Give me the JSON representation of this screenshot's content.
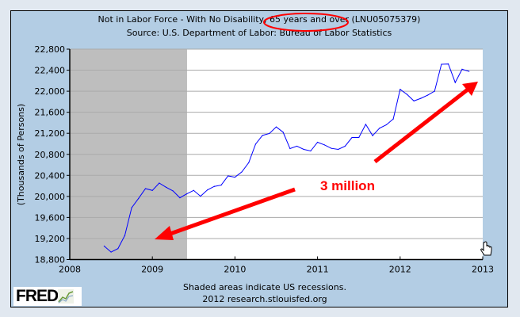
{
  "chart_data": {
    "type": "line",
    "title": "Not in Labor Force - With No Disability, 65 years and over (LNU05075379)",
    "title_parts": [
      "Not in Labor Force - With No Disability, ",
      "65 years and over",
      " (LNU05075379)"
    ],
    "subtitle": "Source: U.S. Department of Labor: Bureau of Labor Statistics",
    "xlabel": "",
    "ylabel": "(Thousands of Persons)",
    "xlim": [
      2008,
      2013
    ],
    "ylim": [
      18800,
      22800
    ],
    "x_ticks": [
      "2008",
      "2009",
      "2010",
      "2011",
      "2012",
      "2013"
    ],
    "y_ticks": [
      "18,800",
      "19,200",
      "19,600",
      "20,000",
      "20,400",
      "20,800",
      "21,200",
      "21,600",
      "22,000",
      "22,400",
      "22,800"
    ],
    "grid": true,
    "recessions": [
      [
        2008.0,
        2009.42
      ]
    ],
    "series": [
      {
        "name": "LNU05075379",
        "color": "#0000ff",
        "start": "2008-06",
        "frequency": "monthly",
        "values": [
          19057,
          18942,
          19008,
          19258,
          19786,
          19963,
          20149,
          20114,
          20254,
          20174,
          20104,
          19974,
          20049,
          20114,
          20004,
          20124,
          20190,
          20215,
          20390,
          20366,
          20466,
          20642,
          20994,
          21160,
          21196,
          21321,
          21220,
          20909,
          20955,
          20894,
          20864,
          21030,
          20980,
          20914,
          20894,
          20955,
          21120,
          21120,
          21371,
          21155,
          21296,
          21362,
          21472,
          22035,
          21940,
          21815,
          21864,
          21925,
          22000,
          22513,
          22518,
          22166,
          22418,
          22377
        ]
      }
    ],
    "annotations": [
      {
        "text": "3 million",
        "color": "#ff0000"
      }
    ]
  },
  "footer": {
    "note": "Shaded areas indicate US recessions.",
    "credit": "2012 research.stlouisfed.org",
    "logo": "FRED"
  }
}
